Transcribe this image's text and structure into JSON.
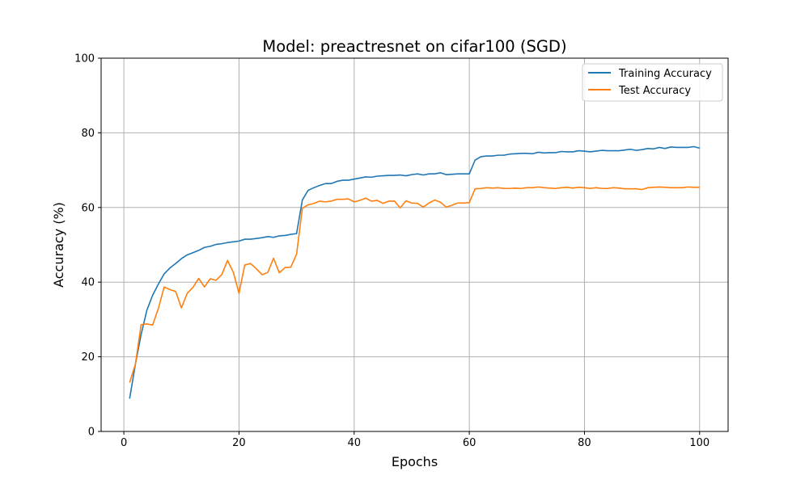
{
  "chart_data": {
    "type": "line",
    "title": "Model: preactresnet on cifar100 (SGD)",
    "xlabel": "Epochs",
    "ylabel": "Accuracy (%)",
    "xlim": [
      -3.95,
      104.95
    ],
    "ylim": [
      0,
      100
    ],
    "x_ticks": [
      0,
      20,
      40,
      60,
      80,
      100
    ],
    "y_ticks": [
      0,
      20,
      40,
      60,
      80,
      100
    ],
    "grid": true,
    "legend_position": "top-right",
    "x": [
      1,
      2,
      3,
      4,
      5,
      6,
      7,
      8,
      9,
      10,
      11,
      12,
      13,
      14,
      15,
      16,
      17,
      18,
      19,
      20,
      21,
      22,
      23,
      24,
      25,
      26,
      27,
      28,
      29,
      30,
      31,
      32,
      33,
      34,
      35,
      36,
      37,
      38,
      39,
      40,
      41,
      42,
      43,
      44,
      45,
      46,
      47,
      48,
      49,
      50,
      51,
      52,
      53,
      54,
      55,
      56,
      57,
      58,
      59,
      60,
      61,
      62,
      63,
      64,
      65,
      66,
      67,
      68,
      69,
      70,
      71,
      72,
      73,
      74,
      75,
      76,
      77,
      78,
      79,
      80,
      81,
      82,
      83,
      84,
      85,
      86,
      87,
      88,
      89,
      90,
      91,
      92,
      93,
      94,
      95,
      96,
      97,
      98,
      99,
      100
    ],
    "series": [
      {
        "name": "Training Accuracy",
        "color": "#1f77b4",
        "values": [
          8.8,
          18.0,
          26.0,
          32.5,
          36.5,
          39.5,
          42.2,
          43.8,
          45.0,
          46.3,
          47.3,
          47.9,
          48.5,
          49.3,
          49.6,
          50.1,
          50.3,
          50.6,
          50.8,
          51.0,
          51.5,
          51.5,
          51.7,
          51.9,
          52.2,
          52.0,
          52.4,
          52.5,
          52.8,
          53.0,
          62.0,
          64.6,
          65.3,
          65.9,
          66.4,
          66.4,
          67.0,
          67.3,
          67.3,
          67.6,
          67.9,
          68.2,
          68.1,
          68.4,
          68.5,
          68.6,
          68.6,
          68.7,
          68.5,
          68.8,
          69.0,
          68.7,
          69.0,
          69.0,
          69.3,
          68.8,
          68.9,
          69.0,
          69.0,
          69.0,
          72.7,
          73.6,
          73.8,
          73.8,
          74.0,
          74.0,
          74.3,
          74.4,
          74.5,
          74.5,
          74.4,
          74.8,
          74.6,
          74.7,
          74.7,
          75.0,
          74.9,
          74.9,
          75.2,
          75.1,
          74.9,
          75.1,
          75.3,
          75.2,
          75.2,
          75.2,
          75.4,
          75.6,
          75.3,
          75.5,
          75.8,
          75.7,
          76.1,
          75.8,
          76.2,
          76.1,
          76.1,
          76.1,
          76.3,
          75.9
        ]
      },
      {
        "name": "Test Accuracy",
        "color": "#ff7f0e",
        "values": [
          13.1,
          18.0,
          28.6,
          28.8,
          28.5,
          33.0,
          38.7,
          38.0,
          37.5,
          33.1,
          37.0,
          38.6,
          41.0,
          38.7,
          40.9,
          40.5,
          42.0,
          45.8,
          42.7,
          37.0,
          44.6,
          45.0,
          43.6,
          42.0,
          42.6,
          46.4,
          42.5,
          43.9,
          44.0,
          47.5,
          59.8,
          60.7,
          61.1,
          61.7,
          61.5,
          61.7,
          62.2,
          62.2,
          62.3,
          61.5,
          61.9,
          62.5,
          61.7,
          61.9,
          61.1,
          61.7,
          61.7,
          59.9,
          61.8,
          61.2,
          61.1,
          60.1,
          61.2,
          62.0,
          61.4,
          60.1,
          60.6,
          61.2,
          61.2,
          61.3,
          65.0,
          65.1,
          65.3,
          65.2,
          65.3,
          65.1,
          65.1,
          65.2,
          65.1,
          65.3,
          65.3,
          65.5,
          65.3,
          65.2,
          65.1,
          65.3,
          65.4,
          65.2,
          65.4,
          65.3,
          65.1,
          65.3,
          65.1,
          65.1,
          65.3,
          65.2,
          65.0,
          65.0,
          65.0,
          64.8,
          65.3,
          65.4,
          65.5,
          65.4,
          65.3,
          65.3,
          65.3,
          65.5,
          65.4,
          65.4
        ]
      }
    ]
  }
}
